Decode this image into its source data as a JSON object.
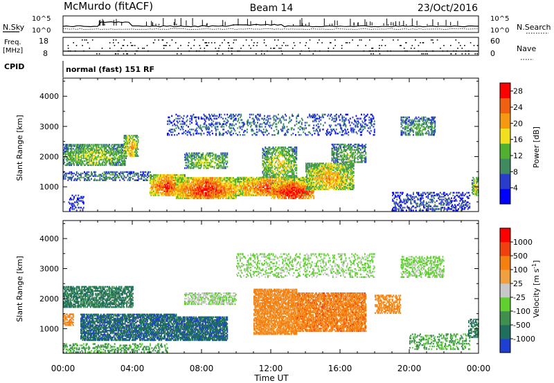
{
  "header": {
    "station": "McMurdo (fitACF)",
    "beam": "Beam 14",
    "date": "23/Oct/2016"
  },
  "side_labels": {
    "nsky": "N.Sky",
    "freq_line1": "Freq.",
    "freq_line2": "[MHz]",
    "cpid": "CPID",
    "nsearch": "N.Search",
    "nave": "Nave"
  },
  "noise_axis": {
    "top": "10^5",
    "bottom": "10^0"
  },
  "freq_axis": {
    "left": [
      "18",
      "8"
    ],
    "right": [
      "60",
      "0"
    ]
  },
  "cpid_text": "normal (fast) 151 RF",
  "chart_data": [
    {
      "type": "heatmap",
      "name": "power-panel",
      "ylabel": "Slant Range [km]",
      "xlabel": "Time UT",
      "x_ticks": [
        "00:00",
        "04:00",
        "08:00",
        "12:00",
        "16:00",
        "20:00",
        "00:00"
      ],
      "x_range_hours": [
        0,
        24
      ],
      "y_ticks": [
        1000,
        2000,
        3000,
        4000
      ],
      "ylim": [
        180,
        4600
      ],
      "colorbar": {
        "label": "Power [dB]",
        "ticks": [
          4,
          8,
          12,
          16,
          20,
          24,
          28
        ],
        "range": [
          0,
          30
        ],
        "colors": [
          "#0000ff",
          "#2a3ccc",
          "#3f8a5f",
          "#4fb12f",
          "#f2e020",
          "#f59a10",
          "#f06010",
          "#ff0000"
        ]
      },
      "regions": [
        {
          "t0": 0.3,
          "t1": 1.2,
          "r0": 200,
          "r1": 700,
          "level": 0.15,
          "density": 0.3
        },
        {
          "t0": 0.0,
          "t1": 3.6,
          "r0": 1700,
          "r1": 2400,
          "level": 0.45,
          "density": 0.6
        },
        {
          "t0": 3.5,
          "t1": 4.3,
          "r0": 2000,
          "r1": 2700,
          "level": 0.6,
          "density": 0.7
        },
        {
          "t0": 0.0,
          "t1": 5.0,
          "r0": 1200,
          "r1": 1500,
          "level": 0.3,
          "density": 0.4
        },
        {
          "t0": 5.0,
          "t1": 7.0,
          "r0": 700,
          "r1": 1400,
          "level": 0.75,
          "density": 0.8
        },
        {
          "t0": 6.5,
          "t1": 10.0,
          "r0": 600,
          "r1": 1300,
          "level": 0.8,
          "density": 0.85
        },
        {
          "t0": 7.0,
          "t1": 9.5,
          "r0": 1600,
          "r1": 2100,
          "level": 0.45,
          "density": 0.5
        },
        {
          "t0": 10.0,
          "t1": 14.0,
          "r0": 700,
          "r1": 1300,
          "level": 0.75,
          "density": 0.8
        },
        {
          "t0": 11.5,
          "t1": 13.5,
          "r0": 1300,
          "r1": 2300,
          "level": 0.5,
          "density": 0.55
        },
        {
          "t0": 12.0,
          "t1": 14.5,
          "r0": 600,
          "r1": 1100,
          "level": 0.9,
          "density": 0.7
        },
        {
          "t0": 14.0,
          "t1": 16.8,
          "r0": 900,
          "r1": 1800,
          "level": 0.6,
          "density": 0.75
        },
        {
          "t0": 15.5,
          "t1": 17.5,
          "r0": 1800,
          "r1": 2400,
          "level": 0.4,
          "density": 0.5
        },
        {
          "t0": 6.0,
          "t1": 18.0,
          "r0": 2700,
          "r1": 3400,
          "level": 0.25,
          "density": 0.2
        },
        {
          "t0": 19.5,
          "t1": 21.5,
          "r0": 2700,
          "r1": 3300,
          "level": 0.35,
          "density": 0.45
        },
        {
          "t0": 19.0,
          "t1": 23.5,
          "r0": 200,
          "r1": 800,
          "level": 0.2,
          "density": 0.3
        },
        {
          "t0": 23.6,
          "t1": 24.0,
          "r0": 700,
          "r1": 1300,
          "level": 0.5,
          "density": 0.6
        }
      ]
    },
    {
      "type": "heatmap",
      "name": "velocity-panel",
      "ylabel": "Slant Range [km]",
      "xlabel": "Time UT",
      "x_ticks": [
        "00:00",
        "04:00",
        "08:00",
        "12:00",
        "16:00",
        "20:00",
        "00:00"
      ],
      "x_range_hours": [
        0,
        24
      ],
      "y_ticks": [
        1000,
        2000,
        3000,
        4000
      ],
      "ylim": [
        180,
        4600
      ],
      "colorbar": {
        "label": "Velocity [m s^-1]",
        "ticks": [
          1000,
          500,
          100,
          25,
          -25,
          -100,
          -500,
          -1000
        ],
        "colors": [
          "#1f3fd0",
          "#1f6f5f",
          "#3f8f4f",
          "#5fd02f",
          "#c8c8c8",
          "#f0a040",
          "#f58010",
          "#f04010",
          "#ff0000"
        ]
      },
      "regions": [
        {
          "t0": 0.0,
          "t1": 0.6,
          "r0": 1100,
          "r1": 1500,
          "level": 0.7,
          "density": 0.6
        },
        {
          "t0": 0.0,
          "t1": 4.0,
          "r0": 1700,
          "r1": 2400,
          "level": 0.2,
          "density": 0.65
        },
        {
          "t0": 1.0,
          "t1": 6.5,
          "r0": 600,
          "r1": 1500,
          "level": 0.15,
          "density": 0.7
        },
        {
          "t0": 6.5,
          "t1": 9.5,
          "r0": 600,
          "r1": 1400,
          "level": 0.15,
          "density": 0.8
        },
        {
          "t0": 7.0,
          "t1": 10.0,
          "r0": 1800,
          "r1": 2200,
          "level": 0.45,
          "density": 0.5
        },
        {
          "t0": 10.0,
          "t1": 18.0,
          "r0": 2700,
          "r1": 3500,
          "level": 0.42,
          "density": 0.25
        },
        {
          "t0": 11.0,
          "t1": 13.5,
          "r0": 800,
          "r1": 2300,
          "level": 0.7,
          "density": 0.75
        },
        {
          "t0": 13.5,
          "t1": 17.5,
          "r0": 900,
          "r1": 2200,
          "level": 0.72,
          "density": 0.75
        },
        {
          "t0": 18.0,
          "t1": 19.5,
          "r0": 1500,
          "r1": 2100,
          "level": 0.7,
          "density": 0.5
        },
        {
          "t0": 19.5,
          "t1": 22.0,
          "r0": 2700,
          "r1": 3400,
          "level": 0.42,
          "density": 0.45
        },
        {
          "t0": 20.0,
          "t1": 23.5,
          "r0": 300,
          "r1": 800,
          "level": 0.3,
          "density": 0.3
        },
        {
          "t0": 23.4,
          "t1": 24.0,
          "r0": 700,
          "r1": 1300,
          "level": 0.2,
          "density": 0.5
        },
        {
          "t0": 0.0,
          "t1": 6.0,
          "r0": 200,
          "r1": 500,
          "level": 0.3,
          "density": 0.3
        }
      ]
    }
  ]
}
